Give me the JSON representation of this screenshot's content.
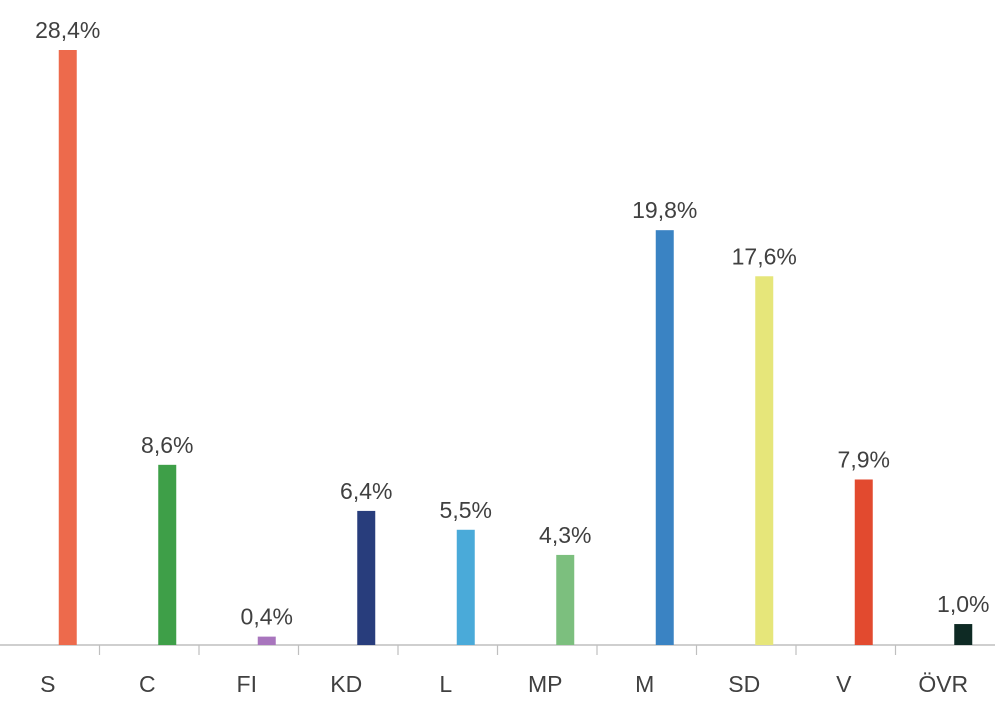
{
  "chart_data": {
    "type": "bar",
    "title": "",
    "xlabel": "",
    "ylabel": "",
    "categories": [
      "S",
      "C",
      "FI",
      "KD",
      "L",
      "MP",
      "M",
      "SD",
      "V",
      "ÖVR"
    ],
    "values": [
      28.4,
      8.6,
      0.4,
      6.4,
      5.5,
      4.3,
      19.8,
      17.6,
      7.9,
      1.0
    ],
    "value_labels": [
      "28,4%",
      "8,6%",
      "0,4%",
      "6,4%",
      "5,5%",
      "4,3%",
      "19,8%",
      "17,6%",
      "7,9%",
      "1,0%"
    ],
    "colors": [
      "#ED6A4C",
      "#3E9F48",
      "#A875BD",
      "#283D7C",
      "#4AAAD9",
      "#7CBF7E",
      "#3A83C3",
      "#E6E67A",
      "#E24A2F",
      "#0E2A24"
    ],
    "ylim": [
      0,
      28.4
    ],
    "grid": false,
    "legend": "none",
    "axis_color": "#BFBFBF"
  }
}
